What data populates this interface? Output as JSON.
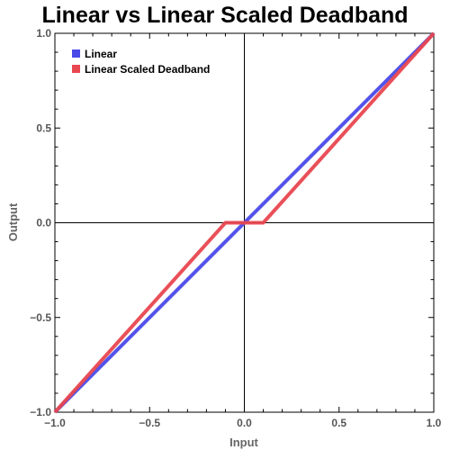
{
  "chart_data": {
    "type": "line",
    "title": "Linear vs Linear Scaled Deadband",
    "xlabel": "Input",
    "ylabel": "Output",
    "xlim": [
      -1.0,
      1.0
    ],
    "ylim": [
      -1.0,
      1.0
    ],
    "x_ticks": [
      -1.0,
      -0.5,
      0.0,
      0.5,
      1.0
    ],
    "x_tick_labels": [
      "−1.0",
      "−0.5",
      "0.0",
      "0.5",
      "1.0"
    ],
    "y_ticks": [
      -1.0,
      -0.5,
      0.0,
      0.5,
      1.0
    ],
    "y_tick_labels": [
      "−1.0",
      "−0.5",
      "0.0",
      "0.5",
      "1.0"
    ],
    "grid": false,
    "legend_position": "top-left",
    "series": [
      {
        "name": "Linear",
        "color": "#4a4ae8",
        "x": [
          -1.0,
          1.0
        ],
        "y": [
          -1.0,
          1.0
        ]
      },
      {
        "name": "Linear Scaled Deadband",
        "color": "#e8474f",
        "x": [
          -1.0,
          -0.1,
          0.1,
          1.0
        ],
        "y": [
          -1.0,
          0.0,
          0.0,
          1.0
        ]
      }
    ]
  }
}
